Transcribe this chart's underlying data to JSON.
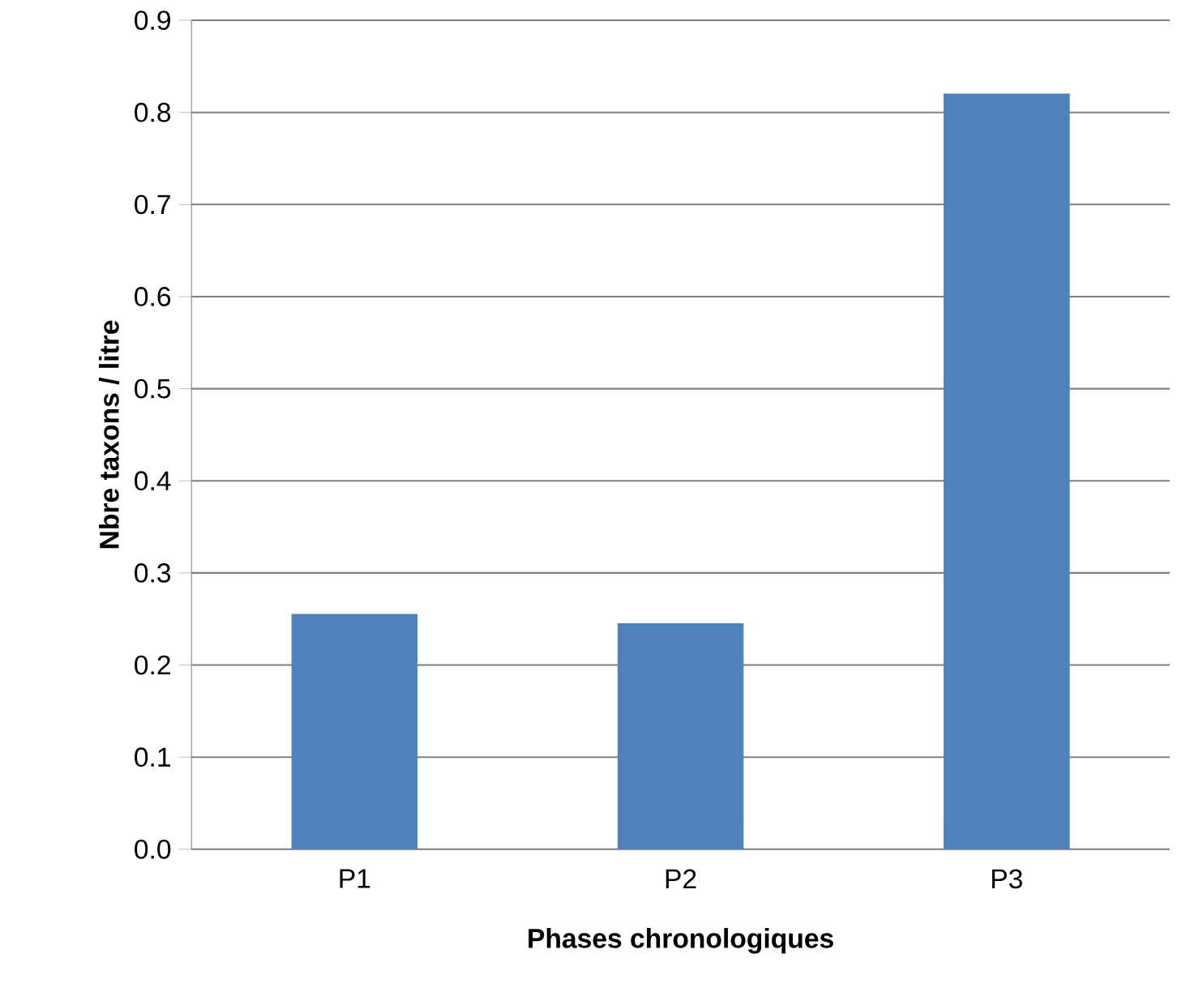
{
  "chart_data": {
    "type": "bar",
    "xlabel": "Phases chronologiques",
    "ylabel": "Nbre taxons / litre",
    "categories": [
      "P1",
      "P2",
      "P3"
    ],
    "values": [
      0.255,
      0.245,
      0.82
    ],
    "color": "#4f81bd",
    "ylim": [
      0,
      0.9
    ],
    "yticks": [
      {
        "value": 0,
        "label": "0.0"
      },
      {
        "value": 0.1,
        "label": "0.1"
      },
      {
        "value": 0.2,
        "label": "0.2"
      },
      {
        "value": 0.3,
        "label": "0.3"
      },
      {
        "value": 0.4,
        "label": "0.4"
      },
      {
        "value": 0.5,
        "label": "0.5"
      },
      {
        "value": 0.6,
        "label": "0.6"
      },
      {
        "value": 0.7,
        "label": "0.7"
      },
      {
        "value": 0.8,
        "label": "0.8"
      },
      {
        "value": 0.9,
        "label": "0.9"
      }
    ],
    "grid": "y"
  }
}
